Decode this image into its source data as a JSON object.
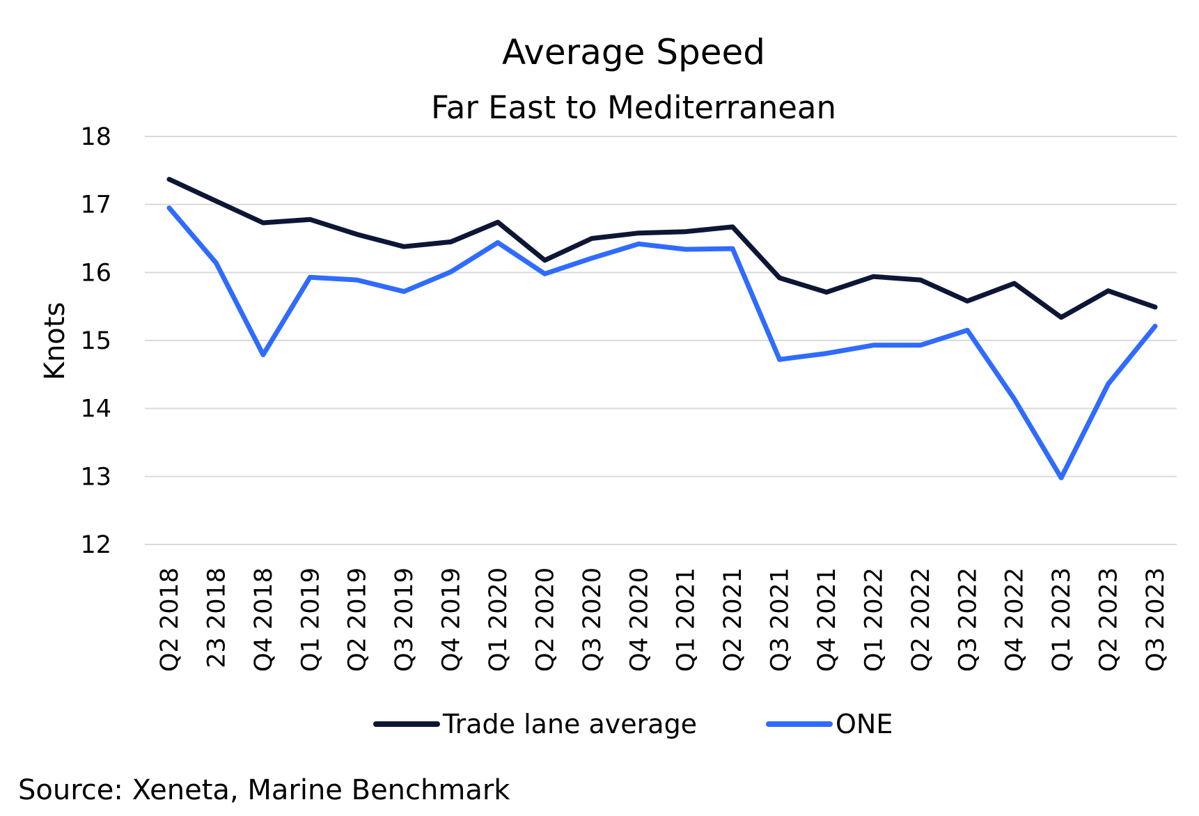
{
  "chart_data": {
    "type": "line",
    "title": "Average Speed",
    "subtitle": "Far East to Mediterranean",
    "ylabel": "Knots",
    "xlabel": "",
    "ylim": [
      12,
      18
    ],
    "yticks": [
      12,
      13,
      14,
      15,
      16,
      17,
      18
    ],
    "grid": true,
    "legend_position": "bottom-center",
    "categories": [
      "Q2 2018",
      "23 2018",
      "Q4 2018",
      "Q1 2019",
      "Q2 2019",
      "Q3 2019",
      "Q4 2019",
      "Q1 2020",
      "Q2 2020",
      "Q3 2020",
      "Q4 2020",
      "Q1 2021",
      "Q2 2021",
      "Q3 2021",
      "Q4 2021",
      "Q1 2022",
      "Q2 2022",
      "Q3 2022",
      "Q4 2022",
      "Q1 2023",
      "Q2 2023",
      "Q3 2023"
    ],
    "series": [
      {
        "name": "Trade lane average",
        "color": "#0d1635",
        "values": [
          17.37,
          17.05,
          16.73,
          16.78,
          16.56,
          16.38,
          16.45,
          16.74,
          16.18,
          16.5,
          16.58,
          16.6,
          16.67,
          15.92,
          15.71,
          15.94,
          15.89,
          15.58,
          15.84,
          15.34,
          15.73,
          15.49
        ]
      },
      {
        "name": "ONE",
        "color": "#2f6bff",
        "values": [
          16.95,
          16.14,
          14.79,
          15.93,
          15.89,
          15.72,
          16.01,
          16.44,
          15.98,
          16.21,
          16.42,
          16.34,
          16.35,
          14.72,
          14.81,
          14.93,
          14.93,
          15.15,
          14.14,
          12.98,
          14.36,
          15.21
        ]
      }
    ],
    "source": "Source: Xeneta, Marine Benchmark"
  }
}
